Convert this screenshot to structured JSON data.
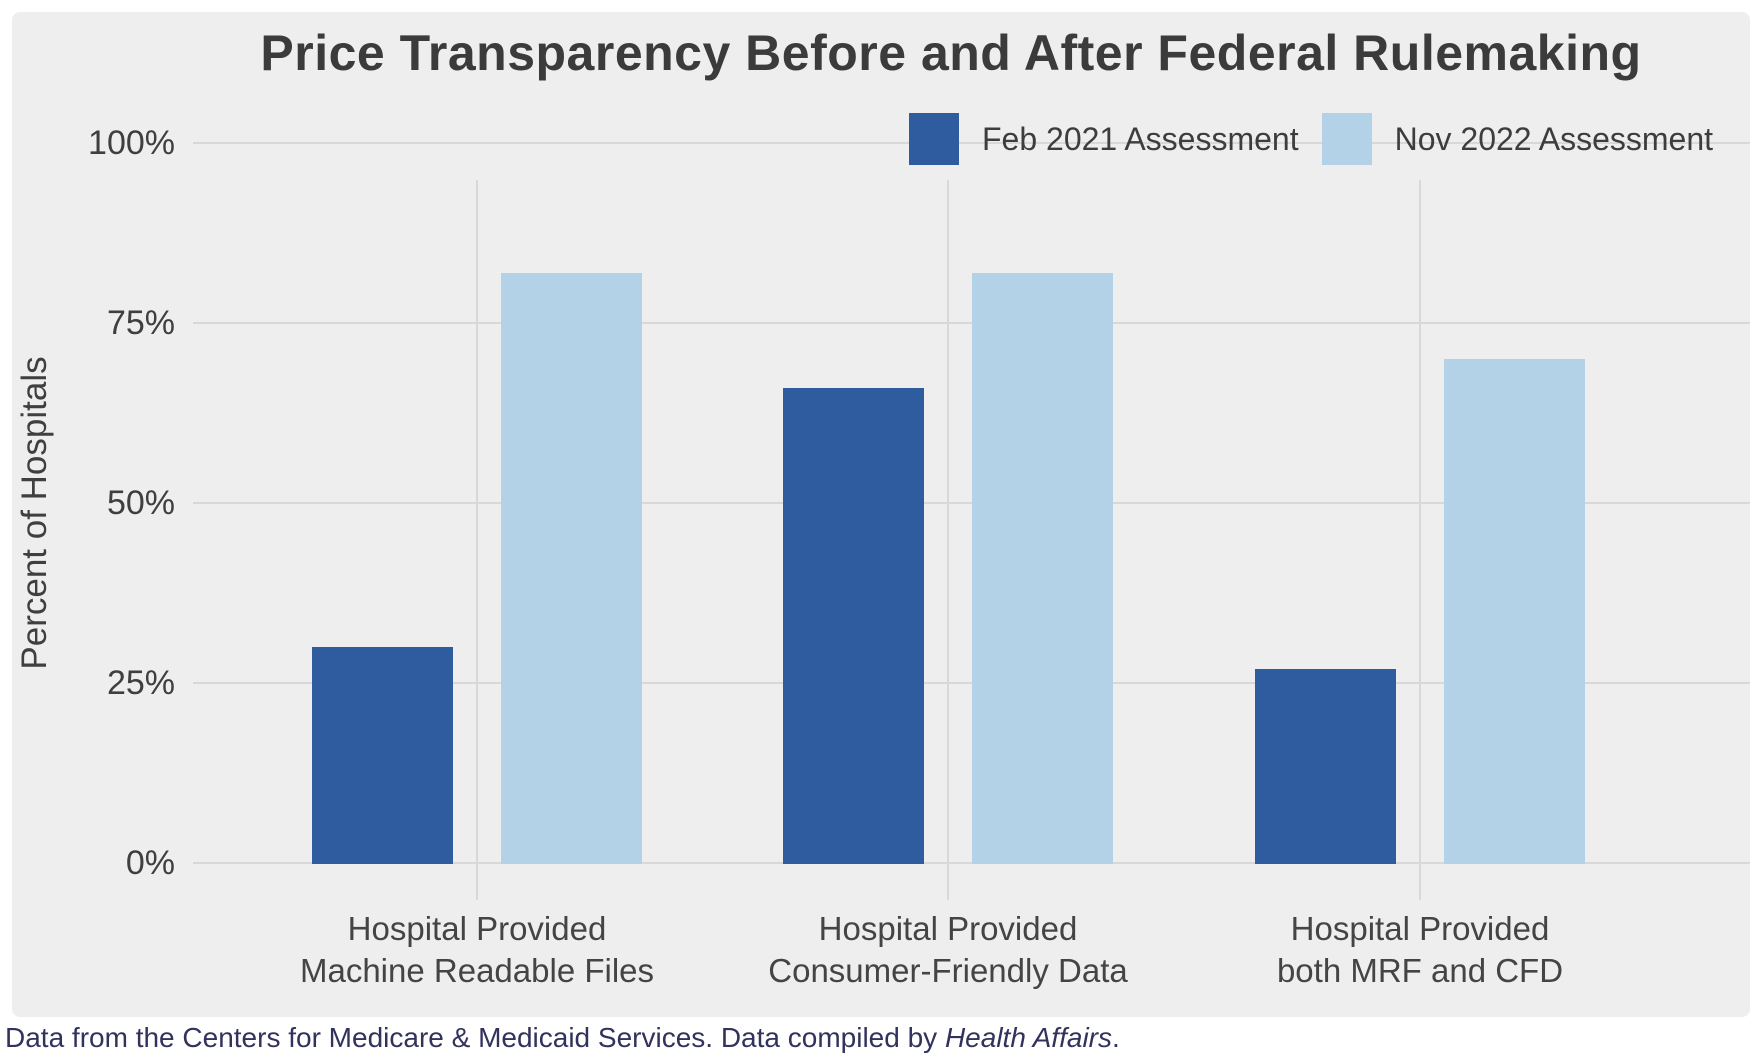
{
  "title": "Price Transparency Before and After Federal Rulemaking",
  "colors": {
    "series_feb_2021": "#2E5C9E",
    "series_nov_2022": "#B3D2E7",
    "panel_background": "#EEEEEF",
    "gridline": "#D8D8DA",
    "title_text": "#3B3B3B",
    "axis_text": "#3F3F3F",
    "caption_text": "#32325D"
  },
  "legend": {
    "items": [
      {
        "label": "Feb 2021 Assessment",
        "color": "#2E5C9E"
      },
      {
        "label": "Nov 2022 Assessment",
        "color": "#B3D2E7"
      }
    ]
  },
  "y_axis": {
    "title": "Percent of Hospitals",
    "tick_labels": [
      "100%",
      "75%",
      "50%",
      "25%",
      "0%"
    ]
  },
  "chart_data": {
    "type": "bar",
    "title": "Price Transparency Before and After Federal Rulemaking",
    "categories": [
      "Hospital Provided\nMachine Readable Files",
      "Hospital Provided\nConsumer-Friendly Data",
      "Hospital Provided\nboth MRF and CFD"
    ],
    "series": [
      {
        "name": "Feb 2021 Assessment",
        "color": "#2E5C9E",
        "values": [
          30,
          66,
          27
        ]
      },
      {
        "name": "Nov 2022 Assessment",
        "color": "#B3D2E7",
        "values": [
          82,
          82,
          70
        ]
      }
    ],
    "xlabel": "",
    "ylabel": "Percent of Hospitals",
    "ylim": [
      0,
      100
    ],
    "yticks": [
      0,
      25,
      50,
      75,
      100
    ],
    "ytick_format": "percent",
    "grid": true,
    "legend_position": "top-right"
  },
  "caption": {
    "prefix": "Data from the Centers for Medicare & Medicaid Services. Data compiled by ",
    "italic": "Health Affairs",
    "suffix": "."
  }
}
